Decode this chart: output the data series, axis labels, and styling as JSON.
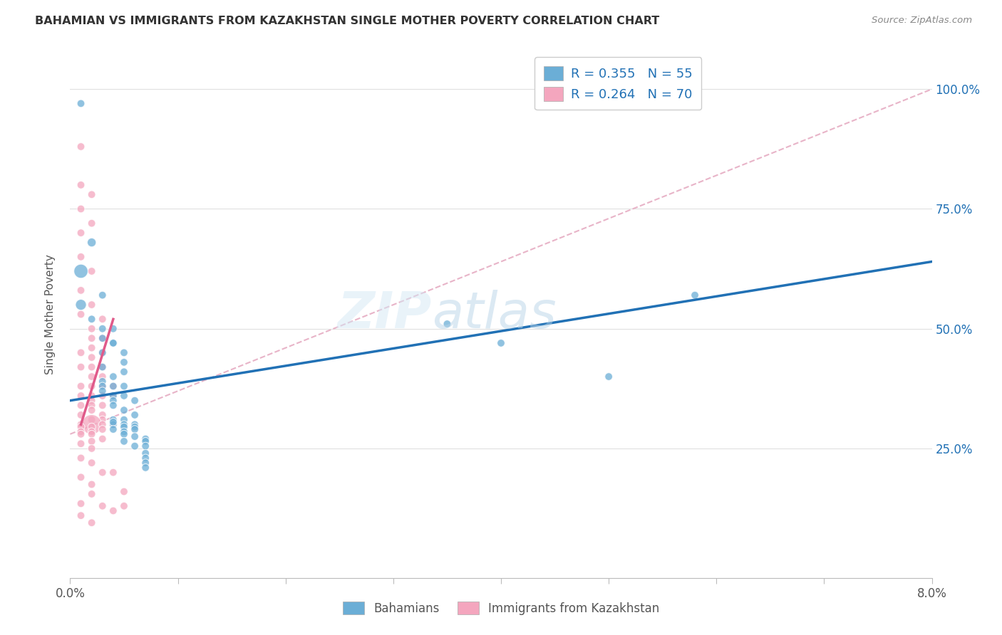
{
  "title": "BAHAMIAN VS IMMIGRANTS FROM KAZAKHSTAN SINGLE MOTHER POVERTY CORRELATION CHART",
  "source": "Source: ZipAtlas.com",
  "ylabel": "Single Mother Poverty",
  "legend_blue_R": "R = 0.355",
  "legend_blue_N": "N = 55",
  "legend_pink_R": "R = 0.264",
  "legend_pink_N": "N = 70",
  "legend_label_blue": "Bahamians",
  "legend_label_pink": "Immigrants from Kazakhstan",
  "watermark": "ZIPatlas",
  "blue_color": "#6baed6",
  "pink_color": "#f4a6be",
  "blue_line_color": "#2171b5",
  "pink_line_color": "#e05a8a",
  "dashed_line_color": "#e8b4c8",
  "background_color": "#ffffff",
  "grid_color": "#e0e0e0",
  "xlim": [
    0.0,
    0.08
  ],
  "ylim": [
    -0.02,
    1.08
  ],
  "ytick_vals": [
    0.25,
    0.5,
    0.75,
    1.0
  ],
  "ytick_labels": [
    "25.0%",
    "50.0%",
    "75.0%",
    "100.0%"
  ],
  "xtick_vals": [
    0.0,
    0.01,
    0.02,
    0.03,
    0.04,
    0.05,
    0.06,
    0.07,
    0.08
  ],
  "blue_scatter": [
    [
      0.001,
      0.97
    ],
    [
      0.002,
      0.68
    ],
    [
      0.001,
      0.62
    ],
    [
      0.003,
      0.57
    ],
    [
      0.001,
      0.55
    ],
    [
      0.002,
      0.52
    ],
    [
      0.003,
      0.5
    ],
    [
      0.003,
      0.48
    ],
    [
      0.004,
      0.5
    ],
    [
      0.004,
      0.47
    ],
    [
      0.003,
      0.45
    ],
    [
      0.003,
      0.42
    ],
    [
      0.004,
      0.4
    ],
    [
      0.004,
      0.38
    ],
    [
      0.004,
      0.47
    ],
    [
      0.005,
      0.45
    ],
    [
      0.005,
      0.43
    ],
    [
      0.005,
      0.41
    ],
    [
      0.003,
      0.39
    ],
    [
      0.003,
      0.38
    ],
    [
      0.003,
      0.37
    ],
    [
      0.004,
      0.36
    ],
    [
      0.004,
      0.35
    ],
    [
      0.004,
      0.34
    ],
    [
      0.005,
      0.38
    ],
    [
      0.005,
      0.36
    ],
    [
      0.006,
      0.35
    ],
    [
      0.005,
      0.33
    ],
    [
      0.006,
      0.32
    ],
    [
      0.005,
      0.31
    ],
    [
      0.006,
      0.3
    ],
    [
      0.005,
      0.3
    ],
    [
      0.004,
      0.31
    ],
    [
      0.004,
      0.3
    ],
    [
      0.004,
      0.305
    ],
    [
      0.005,
      0.295
    ],
    [
      0.006,
      0.295
    ],
    [
      0.005,
      0.285
    ],
    [
      0.004,
      0.29
    ],
    [
      0.006,
      0.29
    ],
    [
      0.005,
      0.28
    ],
    [
      0.006,
      0.275
    ],
    [
      0.005,
      0.265
    ],
    [
      0.007,
      0.27
    ],
    [
      0.007,
      0.265
    ],
    [
      0.006,
      0.255
    ],
    [
      0.007,
      0.255
    ],
    [
      0.007,
      0.24
    ],
    [
      0.007,
      0.23
    ],
    [
      0.007,
      0.22
    ],
    [
      0.007,
      0.21
    ],
    [
      0.035,
      0.51
    ],
    [
      0.04,
      0.47
    ],
    [
      0.05,
      0.4
    ],
    [
      0.058,
      0.57
    ]
  ],
  "blue_sizes": [
    60,
    80,
    200,
    60,
    120,
    60,
    60,
    60,
    60,
    60,
    60,
    60,
    60,
    60,
    60,
    60,
    60,
    60,
    60,
    60,
    60,
    60,
    60,
    60,
    60,
    60,
    60,
    60,
    60,
    60,
    60,
    60,
    60,
    60,
    60,
    60,
    60,
    60,
    60,
    60,
    60,
    60,
    60,
    60,
    60,
    60,
    60,
    60,
    60,
    60,
    60,
    60,
    60,
    60,
    60
  ],
  "pink_scatter": [
    [
      0.001,
      0.88
    ],
    [
      0.001,
      0.8
    ],
    [
      0.002,
      0.78
    ],
    [
      0.001,
      0.75
    ],
    [
      0.002,
      0.72
    ],
    [
      0.001,
      0.7
    ],
    [
      0.001,
      0.65
    ],
    [
      0.002,
      0.62
    ],
    [
      0.001,
      0.58
    ],
    [
      0.001,
      0.53
    ],
    [
      0.002,
      0.55
    ],
    [
      0.002,
      0.5
    ],
    [
      0.002,
      0.48
    ],
    [
      0.002,
      0.46
    ],
    [
      0.001,
      0.45
    ],
    [
      0.002,
      0.44
    ],
    [
      0.003,
      0.52
    ],
    [
      0.003,
      0.48
    ],
    [
      0.001,
      0.42
    ],
    [
      0.002,
      0.42
    ],
    [
      0.003,
      0.45
    ],
    [
      0.003,
      0.42
    ],
    [
      0.002,
      0.4
    ],
    [
      0.003,
      0.4
    ],
    [
      0.002,
      0.38
    ],
    [
      0.003,
      0.38
    ],
    [
      0.001,
      0.38
    ],
    [
      0.002,
      0.36
    ],
    [
      0.001,
      0.36
    ],
    [
      0.003,
      0.36
    ],
    [
      0.002,
      0.35
    ],
    [
      0.003,
      0.34
    ],
    [
      0.001,
      0.34
    ],
    [
      0.002,
      0.34
    ],
    [
      0.002,
      0.33
    ],
    [
      0.003,
      0.32
    ],
    [
      0.001,
      0.32
    ],
    [
      0.002,
      0.31
    ],
    [
      0.003,
      0.31
    ],
    [
      0.001,
      0.3
    ],
    [
      0.002,
      0.3
    ],
    [
      0.003,
      0.3
    ],
    [
      0.001,
      0.295
    ],
    [
      0.002,
      0.295
    ],
    [
      0.003,
      0.29
    ],
    [
      0.002,
      0.285
    ],
    [
      0.001,
      0.285
    ],
    [
      0.002,
      0.28
    ],
    [
      0.001,
      0.28
    ],
    [
      0.003,
      0.27
    ],
    [
      0.002,
      0.265
    ],
    [
      0.001,
      0.26
    ],
    [
      0.002,
      0.25
    ],
    [
      0.001,
      0.23
    ],
    [
      0.002,
      0.22
    ],
    [
      0.003,
      0.2
    ],
    [
      0.001,
      0.19
    ],
    [
      0.002,
      0.175
    ],
    [
      0.002,
      0.155
    ],
    [
      0.001,
      0.135
    ],
    [
      0.001,
      0.11
    ],
    [
      0.003,
      0.13
    ],
    [
      0.002,
      0.095
    ],
    [
      0.004,
      0.38
    ],
    [
      0.004,
      0.36
    ],
    [
      0.004,
      0.3
    ],
    [
      0.004,
      0.2
    ],
    [
      0.004,
      0.12
    ],
    [
      0.005,
      0.16
    ],
    [
      0.005,
      0.13
    ]
  ],
  "pink_sizes": [
    60,
    60,
    60,
    60,
    60,
    60,
    60,
    60,
    60,
    60,
    60,
    60,
    60,
    60,
    60,
    60,
    60,
    60,
    60,
    60,
    60,
    60,
    60,
    60,
    60,
    60,
    60,
    60,
    60,
    60,
    60,
    60,
    60,
    60,
    60,
    60,
    60,
    60,
    60,
    60,
    400,
    60,
    60,
    60,
    60,
    60,
    60,
    60,
    60,
    60,
    60,
    60,
    60,
    60,
    60,
    60,
    60,
    60,
    60,
    60,
    60,
    60,
    60,
    60,
    60,
    60,
    60,
    60,
    60,
    60
  ],
  "blue_line": {
    "x0": 0.0,
    "x1": 0.08,
    "y0": 0.35,
    "y1": 0.64
  },
  "pink_line": {
    "x0": 0.001,
    "x1": 0.004,
    "y0": 0.3,
    "y1": 0.52
  },
  "dashed_line": {
    "x0": 0.0,
    "x1": 0.08,
    "y0": 0.28,
    "y1": 1.0
  }
}
